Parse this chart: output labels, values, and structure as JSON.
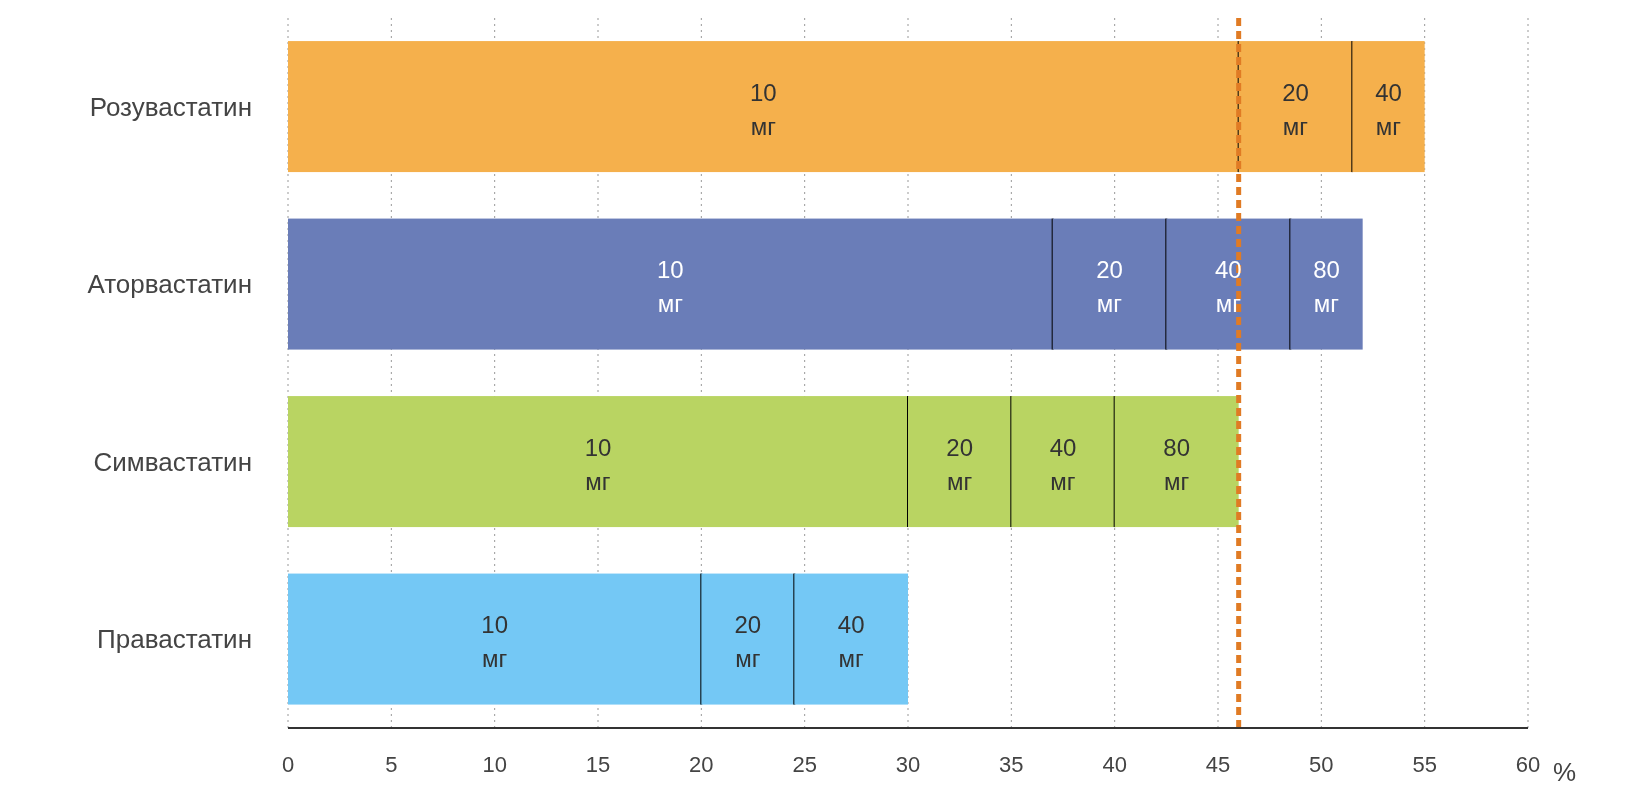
{
  "chart_data": {
    "type": "bar",
    "orientation": "horizontal",
    "stacked": true,
    "categories": [
      "Розувастатин",
      "Аторвастатин",
      "Симвастатин",
      "Правастатин"
    ],
    "series": [
      {
        "name": "10 мг",
        "colors": [
          "#f5b04c",
          "#6a7db8",
          "#b9d462",
          "#74c8f5"
        ],
        "values": [
          46,
          37,
          30,
          20
        ]
      },
      {
        "name": "20 мг",
        "colors": [
          "#f5b04c",
          "#6a7db8",
          "#b9d462",
          "#74c8f5"
        ],
        "values": [
          5.5,
          5.5,
          5,
          4.5
        ]
      },
      {
        "name": "40 мг",
        "colors": [
          "#f5b04c",
          "#6a7db8",
          "#b9d462",
          "#74c8f5"
        ],
        "values": [
          3.5,
          6,
          5,
          5.5
        ]
      },
      {
        "name": "80 мг",
        "colors": [
          "#f5b04c",
          "#6a7db8",
          "#b9d462",
          "#74c8f5"
        ],
        "values": [
          null,
          3.5,
          6,
          null
        ]
      }
    ],
    "xlim": [
      0,
      60
    ],
    "xticks": [
      0,
      5,
      10,
      15,
      20,
      25,
      30,
      35,
      40,
      45,
      50,
      55,
      60
    ],
    "xlabel": "%",
    "grid": "x",
    "ref_lines": [
      {
        "axis": "x",
        "value": 46,
        "color": "#e07b24",
        "line_style": "dashed"
      }
    ]
  }
}
